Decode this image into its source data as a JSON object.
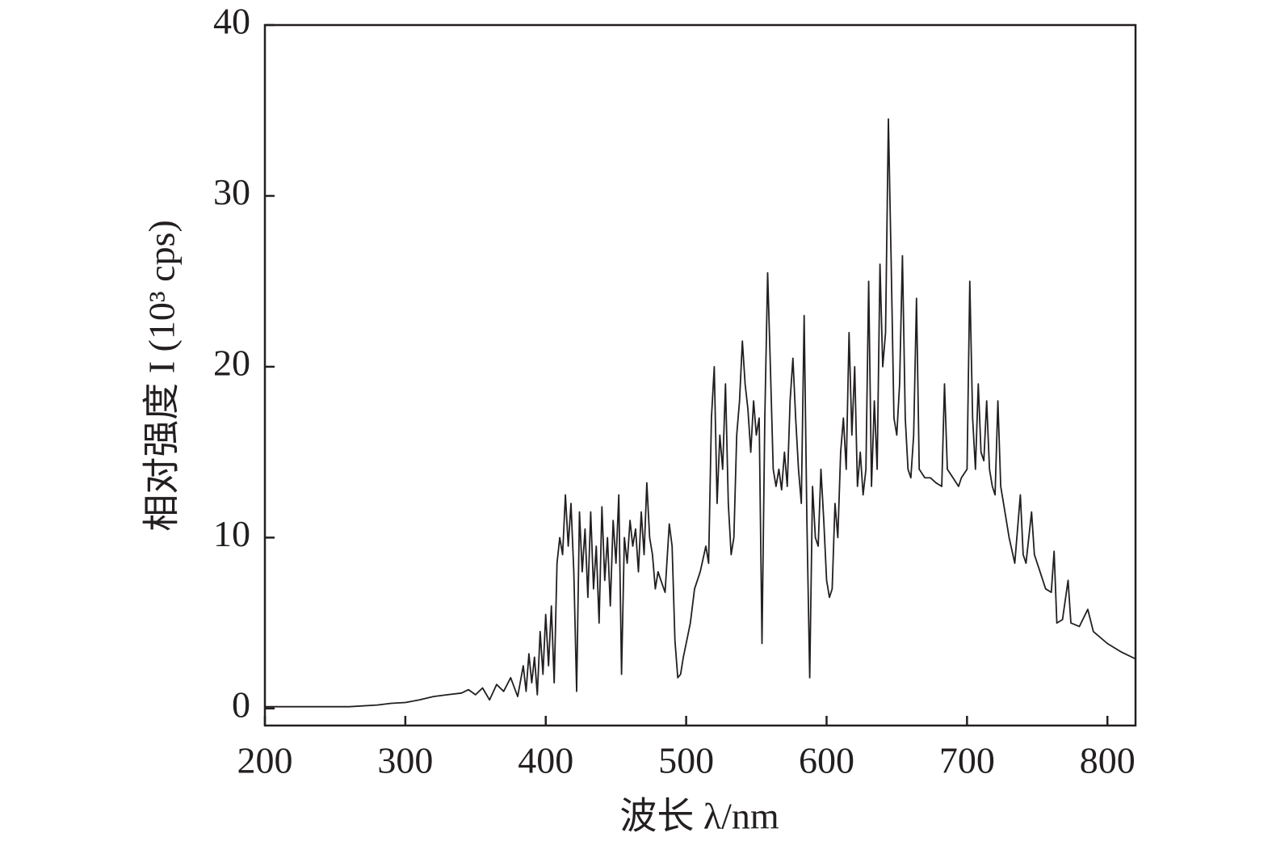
{
  "chart_data": {
    "type": "line",
    "xlabel": "波长 λ/nm",
    "ylabel": "相对强度 I (10³ cps)",
    "xlim": [
      200,
      820
    ],
    "ylim": [
      -1,
      40
    ],
    "xticks": [
      200,
      300,
      400,
      500,
      600,
      700,
      800
    ],
    "yticks": [
      0,
      10,
      20,
      30,
      40
    ],
    "series": [
      {
        "color": "#231f20",
        "x": [
          200,
          220,
          240,
          260,
          280,
          290,
          300,
          310,
          320,
          330,
          340,
          345,
          350,
          355,
          360,
          365,
          370,
          375,
          380,
          384,
          386,
          388,
          390,
          392,
          394,
          396,
          398,
          400,
          402,
          404,
          406,
          408,
          410,
          412,
          414,
          416,
          418,
          420,
          422,
          424,
          426,
          428,
          430,
          432,
          434,
          436,
          438,
          440,
          442,
          444,
          446,
          448,
          450,
          452,
          454,
          456,
          458,
          460,
          462,
          464,
          466,
          468,
          470,
          472,
          474,
          476,
          478,
          480,
          482,
          485,
          488,
          490,
          492,
          494,
          496,
          498,
          500,
          503,
          506,
          510,
          514,
          516,
          518,
          520,
          522,
          524,
          526,
          528,
          530,
          532,
          534,
          536,
          538,
          540,
          542,
          544,
          546,
          548,
          550,
          552,
          554,
          556,
          558,
          560,
          562,
          564,
          566,
          568,
          570,
          572,
          574,
          576,
          578,
          580,
          582,
          584,
          586,
          588,
          590,
          592,
          594,
          596,
          598,
          600,
          602,
          604,
          606,
          608,
          610,
          612,
          614,
          616,
          618,
          620,
          622,
          624,
          626,
          628,
          630,
          632,
          634,
          636,
          638,
          640,
          642,
          644,
          646,
          648,
          650,
          652,
          654,
          656,
          658,
          660,
          662,
          664,
          666,
          670,
          674,
          678,
          682,
          684,
          686,
          690,
          694,
          696,
          700,
          702,
          704,
          706,
          708,
          710,
          712,
          714,
          716,
          718,
          720,
          722,
          724,
          726,
          730,
          734,
          738,
          740,
          742,
          746,
          748,
          752,
          756,
          760,
          762,
          764,
          768,
          772,
          774,
          780,
          786,
          790,
          800,
          810,
          820
        ],
        "values": [
          0.1,
          0.1,
          0.1,
          0.1,
          0.2,
          0.3,
          0.35,
          0.5,
          0.7,
          0.8,
          0.9,
          1.1,
          0.8,
          1.2,
          0.5,
          1.4,
          1.0,
          1.8,
          0.7,
          2.5,
          1.0,
          3.2,
          1.5,
          3.0,
          0.8,
          4.5,
          2.0,
          5.5,
          2.5,
          6.0,
          1.5,
          8.5,
          10,
          9,
          12.5,
          9.5,
          12,
          8,
          1,
          11.5,
          8,
          10.5,
          6.5,
          11.5,
          7,
          9.5,
          5,
          11.8,
          7.5,
          10,
          6,
          11,
          8.5,
          12.5,
          2,
          10,
          8.5,
          11,
          9.5,
          10.5,
          8,
          11.5,
          9,
          13.2,
          10,
          9,
          7,
          8,
          7.5,
          6.8,
          10.8,
          9.5,
          4,
          1.8,
          2,
          3,
          3.8,
          5,
          7,
          8,
          9.5,
          8.5,
          17,
          20,
          12,
          16,
          14,
          19,
          12,
          9,
          10,
          16,
          18,
          21.5,
          19,
          17.5,
          15,
          18,
          16,
          17,
          3.8,
          17,
          25.5,
          20,
          14,
          13,
          14,
          12.8,
          15,
          13,
          18,
          20.5,
          17,
          14,
          12,
          23,
          11,
          1.8,
          13,
          10,
          9.5,
          14,
          11,
          7.5,
          6.5,
          7,
          12,
          10,
          15,
          17,
          14,
          22,
          16,
          20,
          13,
          15,
          12.5,
          14,
          25,
          13,
          18,
          14,
          26,
          20,
          22,
          34.5,
          26,
          17,
          16,
          19,
          26.5,
          17,
          14,
          13.5,
          16,
          24,
          14,
          13.5,
          13.5,
          13.2,
          13,
          19,
          14,
          13.5,
          13,
          13.5,
          14,
          25,
          17,
          14,
          19,
          15,
          14.5,
          18,
          14,
          13,
          12.5,
          18,
          13,
          12,
          10,
          8.5,
          12.5,
          9,
          8.5,
          11.5,
          9,
          8,
          7,
          6.8,
          9.2,
          5,
          5.2,
          7.5,
          5,
          4.8,
          5.8,
          4.5,
          3.8,
          3.3,
          2.9
        ]
      }
    ]
  }
}
